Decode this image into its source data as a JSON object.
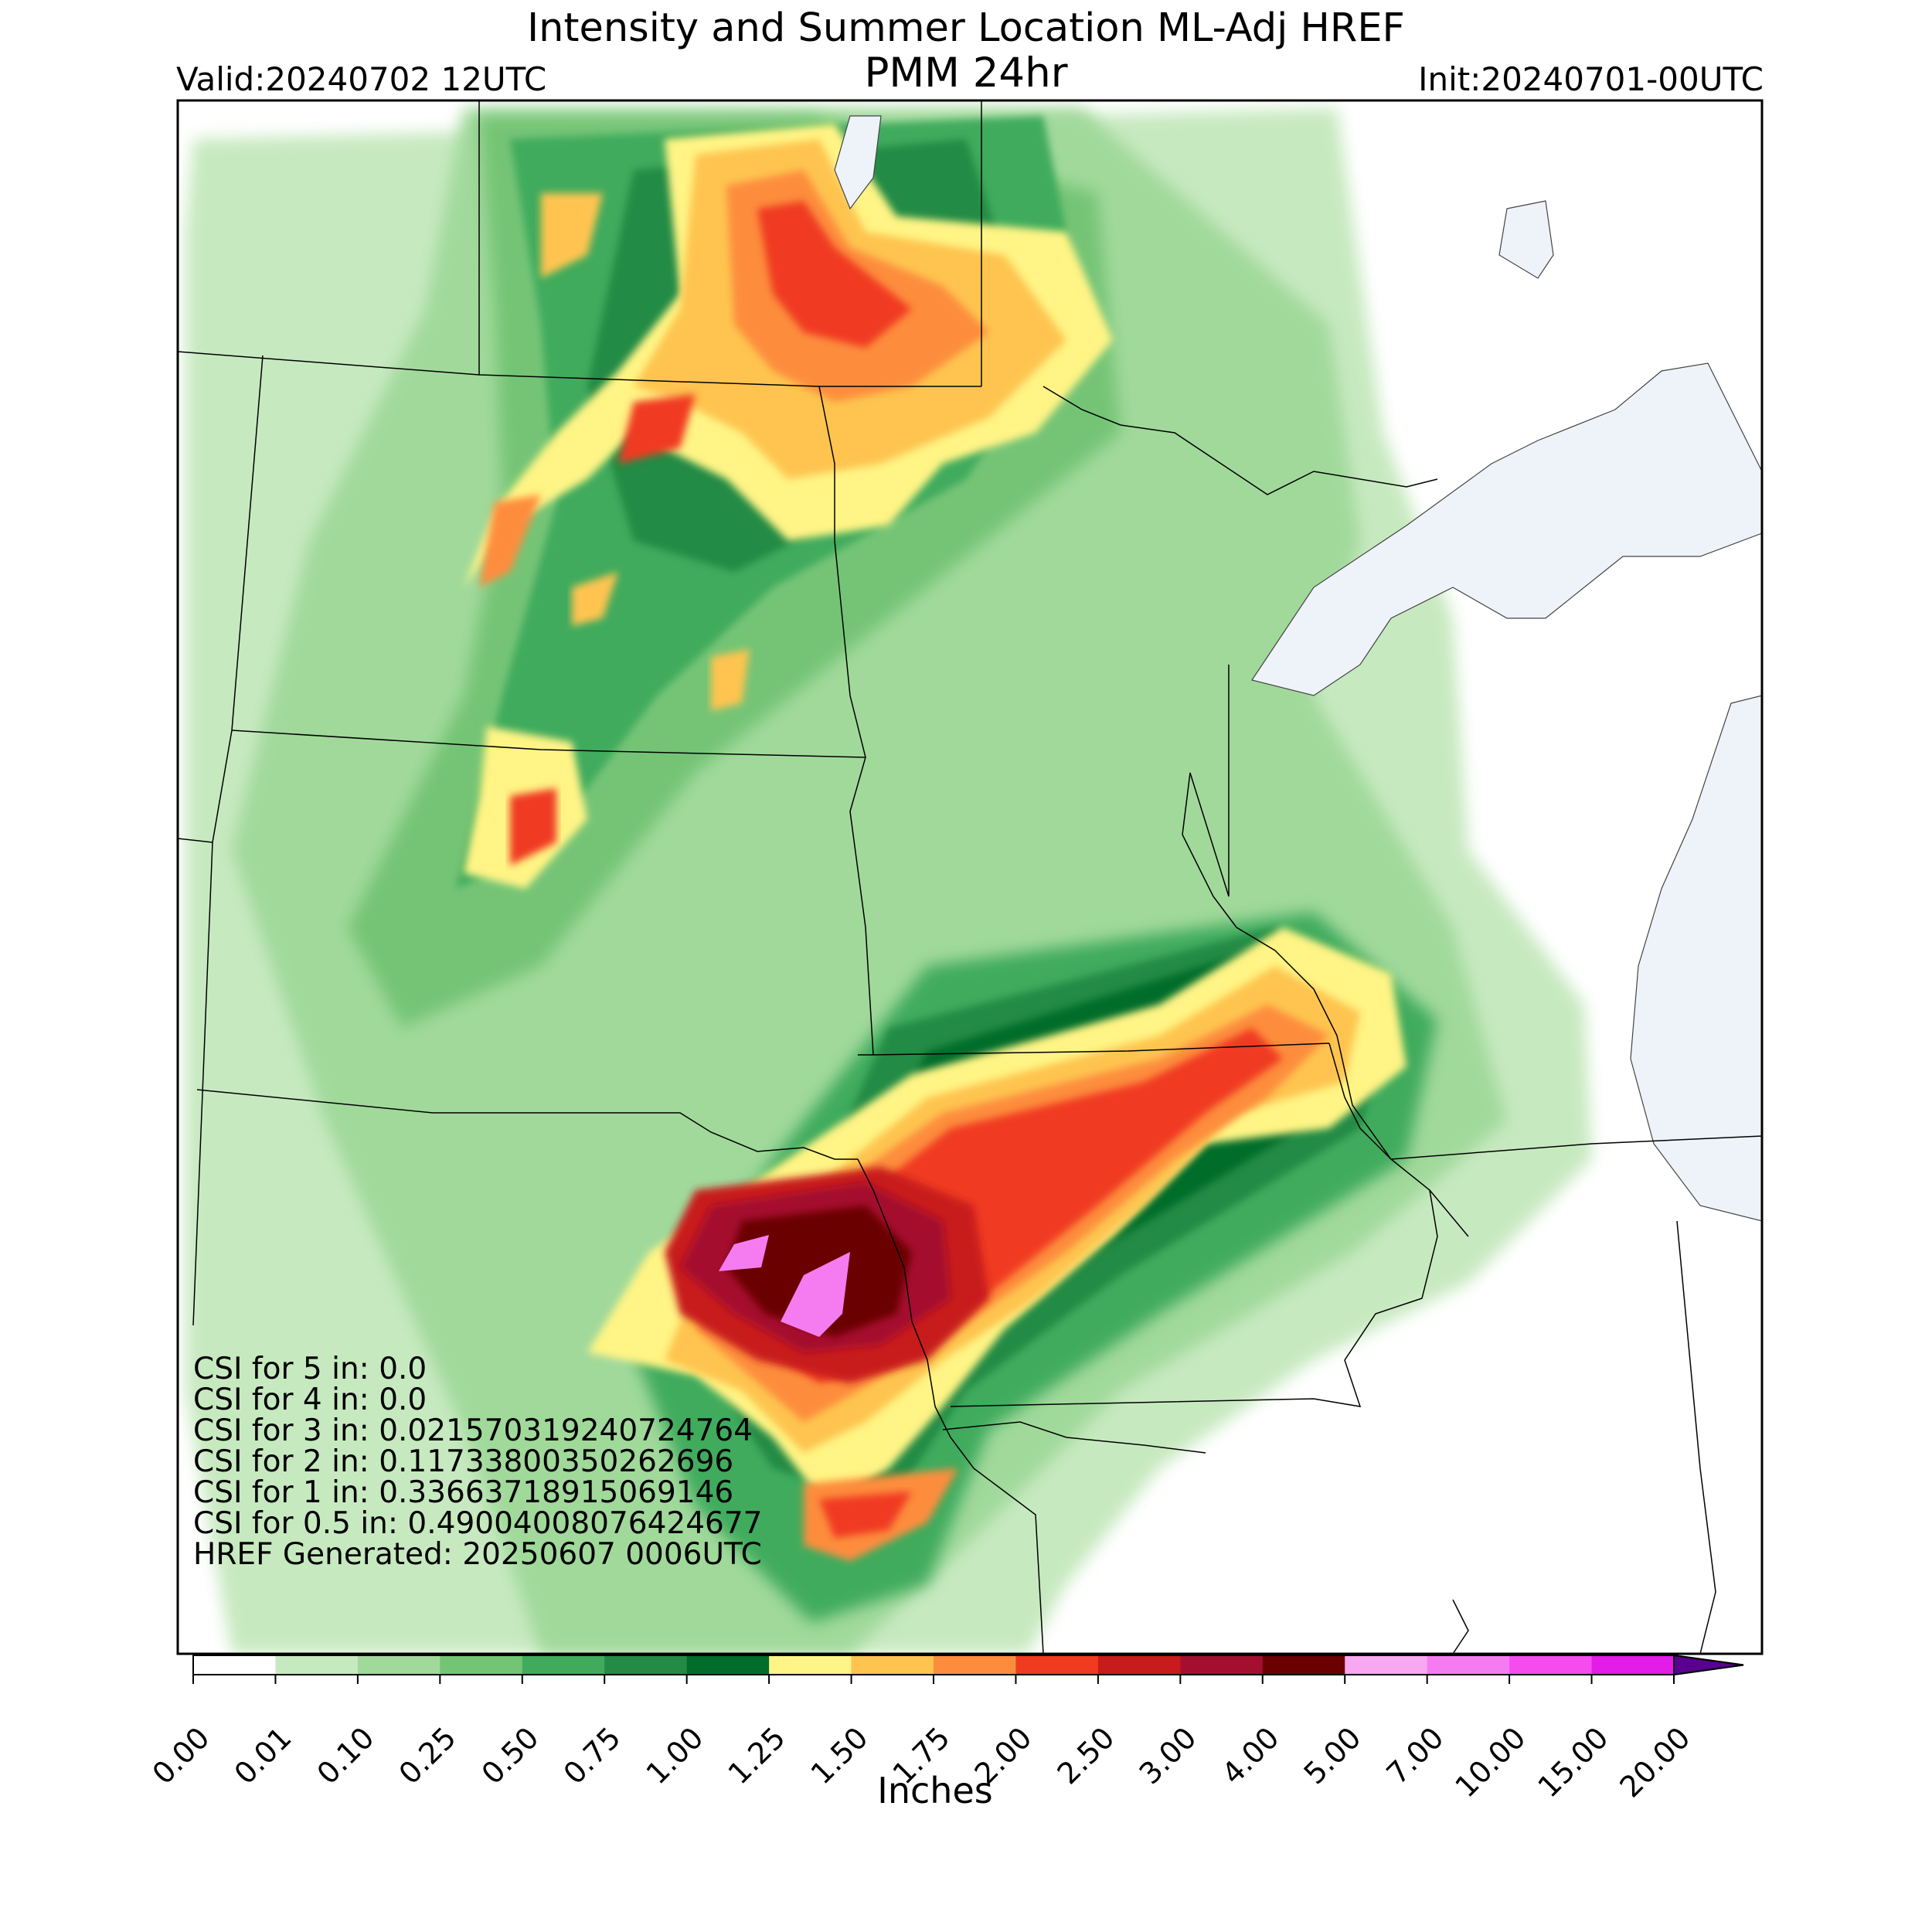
{
  "title_line1": "Intensity and Summer Location ML-Adj HREF",
  "title_line2": "PMM 24hr",
  "valid": "Valid:20240702 12UTC",
  "init": "Init:20240701-00UTC",
  "csi": [
    "CSI for 5 in: 0.0",
    "CSI for 4 in: 0.0",
    "CSI for 3 in: 0.021570319240724764",
    "CSI for 2 in: 0.11733800350262696",
    "CSI for 1 in: 0.33663718915069146",
    "CSI for 0.5 in: 0.49004008076424677",
    "HREF Generated: 20250607 0006UTC"
  ],
  "colorbar": {
    "label": "Inches",
    "ticks": [
      "0.00",
      "0.01",
      "0.10",
      "0.25",
      "0.50",
      "0.75",
      "1.00",
      "1.25",
      "1.50",
      "1.75",
      "2.00",
      "2.50",
      "3.00",
      "4.00",
      "5.00",
      "7.00",
      "10.00",
      "15.00",
      "20.00"
    ],
    "colors": [
      "#ffffff",
      "#c7e9c0",
      "#a1d99b",
      "#74c476",
      "#41ab5d",
      "#238b45",
      "#006d2c",
      "#fff485",
      "#fec44f",
      "#fd8d3c",
      "#f03b20",
      "#c81b1b",
      "#a50f2f",
      "#6b0000",
      "#f7a8f0",
      "#f57cf0",
      "#f54cee",
      "#e31ce8",
      "#c70fd9",
      "#8a00c7"
    ],
    "extend_color": "#5a0090"
  },
  "colors": {
    "lakes": "#eef3f9",
    "border": "#000000"
  }
}
